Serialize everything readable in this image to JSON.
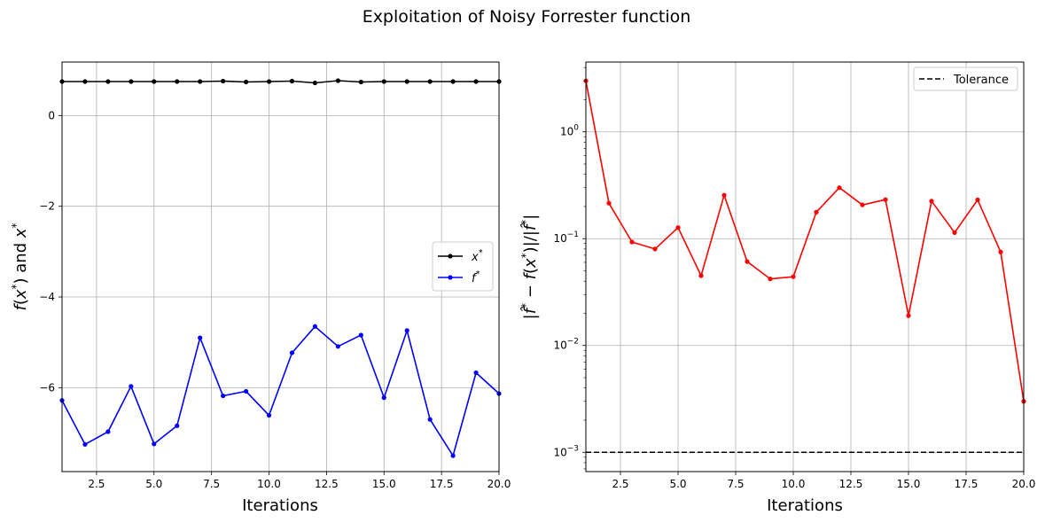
{
  "figure": {
    "title": "Exploitation of Noisy Forrester function"
  },
  "chart_data": [
    {
      "type": "line",
      "xlabel": "Iterations",
      "ylabel": "f(x*) and x*",
      "xlim": [
        1,
        20
      ],
      "ylim": [
        -7.85,
        1.18
      ],
      "yscale": "linear",
      "grid": true,
      "legend_position": "center-right",
      "x_ticks": [
        2.5,
        5.0,
        7.5,
        10.0,
        12.5,
        15.0,
        17.5,
        20.0
      ],
      "x_tick_labels": [
        "2.5",
        "5.0",
        "7.5",
        "10.0",
        "12.5",
        "15.0",
        "17.5",
        "20.0"
      ],
      "y_ticks": [
        0,
        -2,
        -4,
        -6
      ],
      "y_tick_labels": [
        "0",
        "−2",
        "−4",
        "−6"
      ],
      "x": [
        1,
        2,
        3,
        4,
        5,
        6,
        7,
        8,
        9,
        10,
        11,
        12,
        13,
        14,
        15,
        16,
        17,
        18,
        19,
        20
      ],
      "series": [
        {
          "name": "x*",
          "color": "#000000",
          "values": [
            0.75,
            0.75,
            0.75,
            0.75,
            0.75,
            0.75,
            0.75,
            0.76,
            0.74,
            0.75,
            0.76,
            0.72,
            0.77,
            0.74,
            0.75,
            0.75,
            0.75,
            0.75,
            0.75,
            0.75
          ]
        },
        {
          "name": "f*",
          "color": "#0000ff",
          "values": [
            -6.28,
            -7.25,
            -6.97,
            -5.97,
            -7.24,
            -6.84,
            -4.9,
            -6.18,
            -6.08,
            -6.61,
            -5.23,
            -4.65,
            -5.09,
            -4.84,
            -6.22,
            -4.74,
            -6.7,
            -7.5,
            -5.67,
            -6.13
          ]
        }
      ]
    },
    {
      "type": "line",
      "xlabel": "Iterations",
      "ylabel": "|f̂* − f(x*)|/|f̂*|",
      "xlim": [
        1,
        20
      ],
      "ylim": [
        0.00066,
        4.5
      ],
      "yscale": "log",
      "grid": true,
      "legend_position": "top-right",
      "x_ticks": [
        2.5,
        5.0,
        7.5,
        10.0,
        12.5,
        15.0,
        17.5,
        20.0
      ],
      "x_tick_labels": [
        "2.5",
        "5.0",
        "7.5",
        "10.0",
        "12.5",
        "15.0",
        "17.5",
        "20.0"
      ],
      "y_ticks": [
        0.001,
        0.01,
        0.1,
        1
      ],
      "y_tick_labels": [
        {
          "base": "10",
          "exp": "−3"
        },
        {
          "base": "10",
          "exp": "−2"
        },
        {
          "base": "10",
          "exp": "−1"
        },
        {
          "base": "10",
          "exp": "0"
        }
      ],
      "x": [
        1,
        2,
        3,
        4,
        5,
        6,
        7,
        8,
        9,
        10,
        11,
        12,
        13,
        14,
        15,
        16,
        17,
        18,
        19,
        20
      ],
      "series": [
        {
          "name": "",
          "color": "#ff0000",
          "values": [
            3.0,
            0.215,
            0.093,
            0.08,
            0.127,
            0.045,
            0.255,
            0.061,
            0.042,
            0.044,
            0.177,
            0.3,
            0.207,
            0.232,
            0.019,
            0.225,
            0.114,
            0.231,
            0.075,
            0.003
          ]
        }
      ],
      "reference_lines": [
        {
          "name": "Tolerance",
          "y": 0.001,
          "color": "#000000",
          "style": "dashed"
        }
      ]
    }
  ]
}
